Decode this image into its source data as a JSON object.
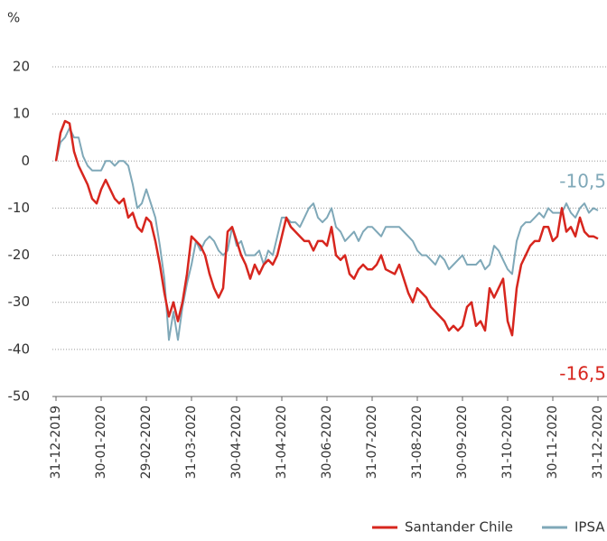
{
  "chart_data": {
    "type": "line",
    "y_axis_label": "%",
    "categories": [
      "31-12-2019",
      null,
      null,
      null,
      null,
      null,
      null,
      null,
      null,
      null,
      "30-01-2020",
      null,
      null,
      null,
      null,
      null,
      null,
      null,
      null,
      null,
      "29-02-2020",
      null,
      null,
      null,
      null,
      null,
      null,
      null,
      null,
      null,
      "31-03-2020",
      null,
      null,
      null,
      null,
      null,
      null,
      null,
      null,
      null,
      "30-04-2020",
      null,
      null,
      null,
      null,
      null,
      null,
      null,
      null,
      null,
      "31-04-2020",
      null,
      null,
      null,
      null,
      null,
      null,
      null,
      null,
      null,
      "30-06-2020",
      null,
      null,
      null,
      null,
      null,
      null,
      null,
      null,
      null,
      "31-07-2020",
      null,
      null,
      null,
      null,
      null,
      null,
      null,
      null,
      null,
      "31-08-2020",
      null,
      null,
      null,
      null,
      null,
      null,
      null,
      null,
      null,
      "30-09-2020",
      null,
      null,
      null,
      null,
      null,
      null,
      null,
      null,
      null,
      "31-10-2020",
      null,
      null,
      null,
      null,
      null,
      null,
      null,
      null,
      null,
      "30-11-2020",
      null,
      null,
      null,
      null,
      null,
      null,
      null,
      null,
      null,
      "31-12-2020"
    ],
    "series": [
      {
        "name": "Santander Chile",
        "color": "#d7261e",
        "end_label": "-16,5",
        "values": [
          0,
          6,
          8.5,
          8,
          2,
          -1,
          -3,
          -5,
          -8,
          -9,
          -6,
          -4,
          -6,
          -8,
          -9,
          -8,
          -12,
          -11,
          -14,
          -15,
          -12,
          -13,
          -17,
          -22,
          -28,
          -33,
          -30,
          -34,
          -30,
          -24,
          -16,
          -17,
          -18,
          -20,
          -24,
          -27,
          -29,
          -27,
          -15,
          -14,
          -17,
          -20,
          -22,
          -25,
          -22,
          -24,
          -22,
          -21,
          -22,
          -20,
          -16,
          -12,
          -14,
          -15,
          -16,
          -17,
          -17,
          -19,
          -17,
          -17,
          -18,
          -14,
          -20,
          -21,
          -20,
          -24,
          -25,
          -23,
          -22,
          -23,
          -23,
          -22,
          -20,
          -23,
          -23.5,
          -24,
          -22,
          -25,
          -28,
          -30,
          -27,
          -28,
          -29,
          -31,
          -32,
          -33,
          -34,
          -36,
          -35,
          -36,
          -35,
          -31,
          -30,
          -35,
          -34,
          -36,
          -27,
          -29,
          -27,
          -25,
          -34,
          -37,
          -27,
          -22,
          -20,
          -18,
          -17,
          -17,
          -14,
          -14,
          -17,
          -16,
          -10,
          -15,
          -14,
          -16,
          -12,
          -15,
          -16,
          -16,
          -16.5
        ]
      },
      {
        "name": "IPSA",
        "color": "#7fa8b8",
        "end_label": "-10,5",
        "values": [
          0,
          4,
          5,
          7,
          5,
          5,
          1,
          -1,
          -2,
          -2,
          -2,
          0,
          0,
          -1,
          0,
          0,
          -1,
          -5,
          -10,
          -9,
          -6,
          -9,
          -12,
          -18,
          -25,
          -38,
          -32,
          -38,
          -31,
          -26,
          -22,
          -17,
          -19,
          -17,
          -16,
          -17,
          -19,
          -20,
          -19,
          -14,
          -18,
          -17,
          -20,
          -20,
          -20,
          -19,
          -22,
          -19,
          -20,
          -16,
          -12,
          -12,
          -13,
          -13,
          -14,
          -12,
          -10,
          -9,
          -12,
          -13,
          -12,
          -10,
          -14,
          -15,
          -17,
          -16,
          -15,
          -17,
          -15,
          -14,
          -14,
          -15,
          -16,
          -14,
          -14,
          -14,
          -14,
          -15,
          -16,
          -17,
          -19,
          -20,
          -20,
          -21,
          -22,
          -20,
          -21,
          -23,
          -22,
          -21,
          -20,
          -22,
          -22,
          -22,
          -21,
          -23,
          -22,
          -18,
          -19,
          -21,
          -23,
          -24,
          -17,
          -14,
          -13,
          -13,
          -12,
          -11,
          -12,
          -10,
          -11,
          -11,
          -11,
          -9,
          -11,
          -12,
          -10,
          -9,
          -11,
          -10,
          -10.5
        ]
      }
    ],
    "ylim": [
      -50,
      20
    ],
    "yticks": [
      -50,
      -40,
      -30,
      -20,
      -10,
      0,
      10,
      20
    ],
    "grid": true
  }
}
